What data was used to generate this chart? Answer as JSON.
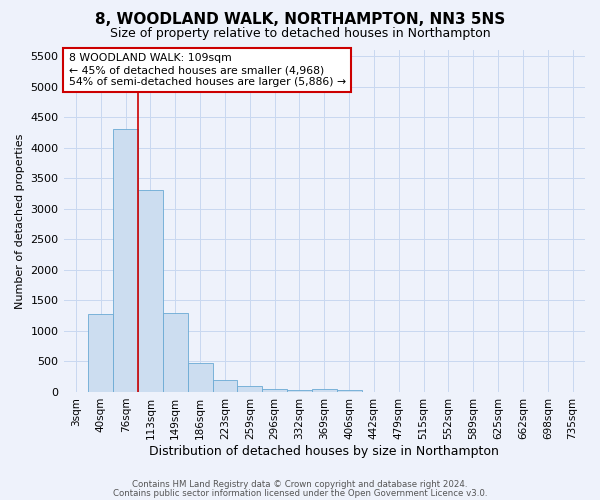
{
  "title": "8, WOODLAND WALK, NORTHAMPTON, NN3 5NS",
  "subtitle": "Size of property relative to detached houses in Northampton",
  "xlabel": "Distribution of detached houses by size in Northampton",
  "ylabel": "Number of detached properties",
  "footnote1": "Contains HM Land Registry data © Crown copyright and database right 2024.",
  "footnote2": "Contains public sector information licensed under the Open Government Licence v3.0.",
  "bar_labels": [
    "3sqm",
    "40sqm",
    "76sqm",
    "113sqm",
    "149sqm",
    "186sqm",
    "223sqm",
    "259sqm",
    "296sqm",
    "332sqm",
    "369sqm",
    "406sqm",
    "442sqm",
    "479sqm",
    "515sqm",
    "552sqm",
    "589sqm",
    "625sqm",
    "662sqm",
    "698sqm",
    "735sqm"
  ],
  "bar_values": [
    0,
    1270,
    4300,
    3300,
    1290,
    480,
    200,
    90,
    55,
    25,
    45,
    35,
    0,
    0,
    0,
    0,
    0,
    0,
    0,
    0,
    0
  ],
  "bar_color": "#ccddf0",
  "bar_edge_color": "#6aaad4",
  "vline_x": 2.5,
  "vline_color": "#cc0000",
  "ylim": [
    0,
    5600
  ],
  "yticks": [
    0,
    500,
    1000,
    1500,
    2000,
    2500,
    3000,
    3500,
    4000,
    4500,
    5000,
    5500
  ],
  "annotation_title": "8 WOODLAND WALK: 109sqm",
  "annotation_line1": "← 45% of detached houses are smaller (4,968)",
  "annotation_line2": "54% of semi-detached houses are larger (5,886) →",
  "annotation_box_facecolor": "#ffffff",
  "annotation_box_edgecolor": "#cc0000",
  "grid_color": "#c8d8f0",
  "bg_color": "#eef2fb",
  "title_fontsize": 11,
  "subtitle_fontsize": 9,
  "ylabel_fontsize": 8,
  "xlabel_fontsize": 9
}
